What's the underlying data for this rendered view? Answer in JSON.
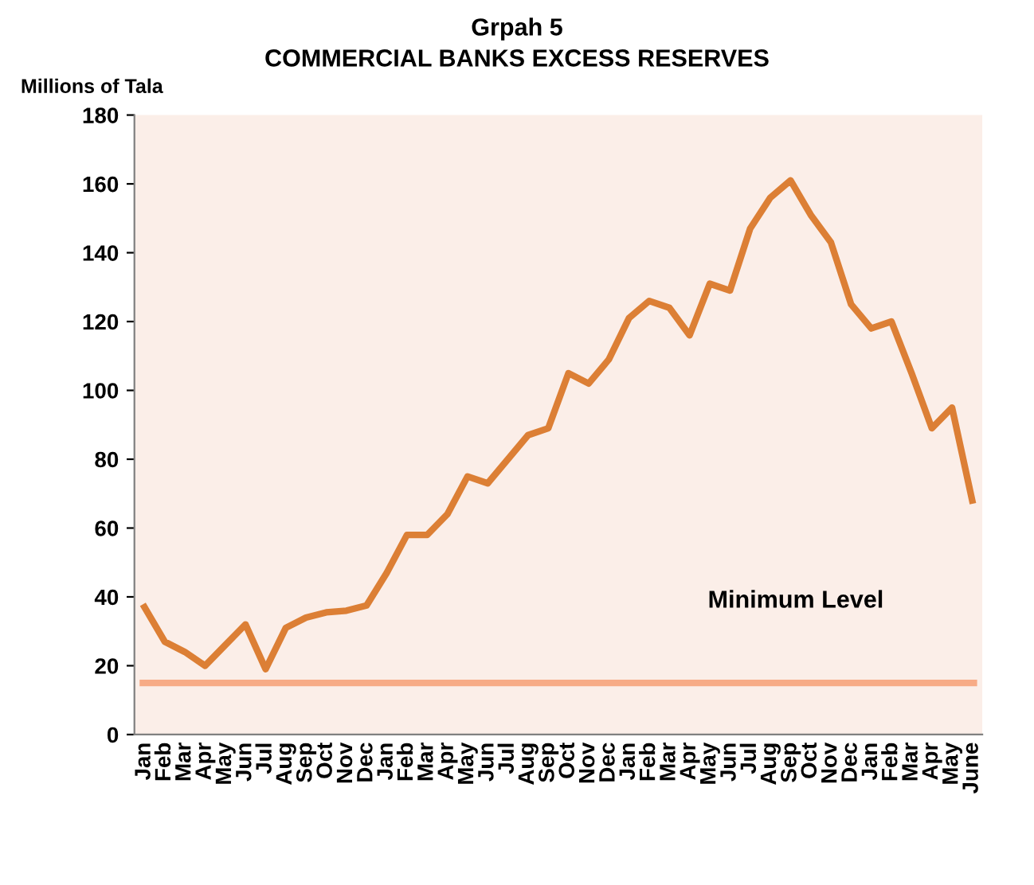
{
  "chart_data": {
    "type": "line",
    "title": "Grpah 5",
    "subtitle": "COMMERCIAL BANKS EXCESS RESERVES",
    "ylabel": "Millions of Tala",
    "categories": [
      "Jan",
      "Feb",
      "Mar",
      "Apr",
      "May",
      "Jun",
      "Jul",
      "Aug",
      "Sep",
      "Oct",
      "Nov",
      "Dec",
      "Jan",
      "Feb",
      "Mar",
      "Apr",
      "May",
      "Jun",
      "Jul",
      "Aug",
      "Sep",
      "Oct",
      "Nov",
      "Dec",
      "Jan",
      "Feb",
      "Mar",
      "Apr",
      "May",
      "Jun",
      "Jul",
      "Aug",
      "Sep",
      "Oct",
      "Nov",
      "Dec",
      "Jan",
      "Feb",
      "Mar",
      "Apr",
      "May",
      "June"
    ],
    "series": [
      {
        "color": "#dc7f35",
        "values": [
          37,
          27,
          24,
          20,
          26,
          32,
          19,
          31,
          34,
          35.5,
          36,
          37.5,
          47,
          58,
          58,
          64,
          75,
          73,
          80,
          87,
          89,
          105,
          102,
          109,
          121,
          126,
          124,
          116,
          131,
          129,
          147,
          156,
          161,
          151,
          143,
          125,
          118,
          120,
          105,
          89,
          95,
          68
        ]
      }
    ],
    "ylim": [
      0,
      180
    ],
    "yticks": [
      0,
      20,
      40,
      60,
      80,
      100,
      120,
      140,
      160,
      180
    ],
    "grid": false,
    "legend": false,
    "marker": "none",
    "line_style": "solid",
    "annotations": [
      "Minimum Level"
    ],
    "ref_lines": [
      {
        "axis": "y",
        "value": 15,
        "color": "#f7ab86"
      }
    ]
  }
}
